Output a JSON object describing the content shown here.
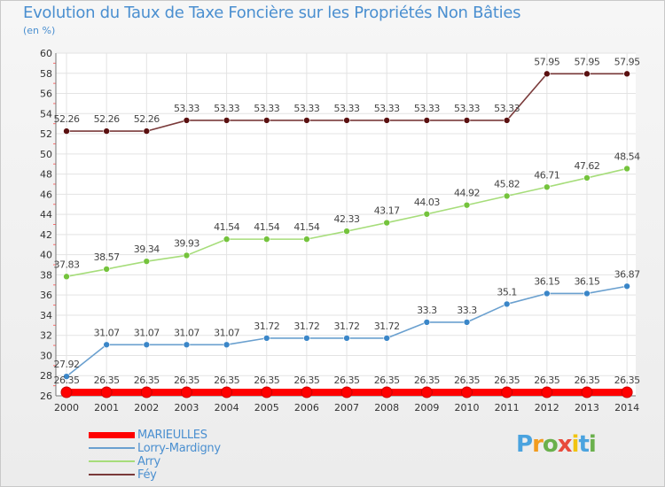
{
  "title": "Evolution du Taux de Taxe Foncière sur les Propriétés Non Bâties",
  "subtitle": "(en %)",
  "brand": {
    "text": "Proxiti",
    "letters": [
      "P",
      "r",
      "o",
      "x",
      "i",
      "t",
      "i"
    ],
    "colors": [
      "#4aa3df",
      "#f29c1f",
      "#6ab04c",
      "#e84b3c",
      "#f1c40f",
      "#4aa3df",
      "#6ab04c"
    ]
  },
  "chart_data": {
    "type": "line",
    "title": "Evolution du Taux de Taxe Foncière sur les Propriétés Non Bâties",
    "ylabel": "(en %)",
    "xlabel": "",
    "x": [
      "2000",
      "2001",
      "2002",
      "2003",
      "2004",
      "2005",
      "2006",
      "2007",
      "2008",
      "2009",
      "2010",
      "2011",
      "2012",
      "2013",
      "2014"
    ],
    "ylim": [
      26,
      60
    ],
    "yticks": [
      "26",
      "28",
      "30",
      "32",
      "34",
      "36",
      "38",
      "40",
      "42",
      "44",
      "46",
      "48",
      "50",
      "52",
      "54",
      "56",
      "58",
      "60"
    ],
    "grid": true,
    "legend_position": "bottom-left",
    "series": [
      {
        "name": "MARIEULLES",
        "color": "#ff0000",
        "values": [
          26.35,
          26.35,
          26.35,
          26.35,
          26.35,
          26.35,
          26.35,
          26.35,
          26.35,
          26.35,
          26.35,
          26.35,
          26.35,
          26.35,
          26.35
        ],
        "labels": [
          "26.35",
          "26.35",
          "26.35",
          "26.35",
          "26.35",
          "26.35",
          "26.35",
          "26.35",
          "26.35",
          "26.35",
          "26.35",
          "26.35",
          "26.35",
          "26.35",
          "26.35"
        ]
      },
      {
        "name": "Lorry-Mardigny",
        "color": "#6aa0cf",
        "values": [
          27.92,
          31.07,
          31.07,
          31.07,
          31.07,
          31.72,
          31.72,
          31.72,
          31.72,
          33.3,
          33.3,
          35.1,
          36.15,
          36.15,
          36.87
        ],
        "labels": [
          "27.92",
          "31.07",
          "31.07",
          "31.07",
          "31.07",
          "31.72",
          "31.72",
          "31.72",
          "31.72",
          "33.3",
          "33.3",
          "35.1",
          "36.15",
          "36.15",
          "36.87"
        ]
      },
      {
        "name": "Arry",
        "color": "#a6dd7a",
        "values": [
          37.83,
          38.57,
          39.34,
          39.93,
          41.54,
          41.54,
          41.54,
          42.33,
          43.17,
          44.03,
          44.92,
          45.82,
          46.71,
          47.62,
          48.54
        ],
        "labels": [
          "37.83",
          "38.57",
          "39.34",
          "39.93",
          "41.54",
          "41.54",
          "41.54",
          "42.33",
          "43.17",
          "44.03",
          "44.92",
          "45.82",
          "46.71",
          "47.62",
          "48.54"
        ]
      },
      {
        "name": "Féy",
        "color": "#7a3a3a",
        "values": [
          52.26,
          52.26,
          52.26,
          53.33,
          53.33,
          53.33,
          53.33,
          53.33,
          53.33,
          53.33,
          53.33,
          53.33,
          57.95,
          57.95,
          57.95
        ],
        "labels": [
          "52.26",
          "52.26",
          "52.26",
          "53.33",
          "53.33",
          "53.33",
          "53.33",
          "53.33",
          "53.33",
          "53.33",
          "53.33",
          "53.33",
          "57.95",
          "57.95",
          "57.95"
        ]
      }
    ]
  }
}
